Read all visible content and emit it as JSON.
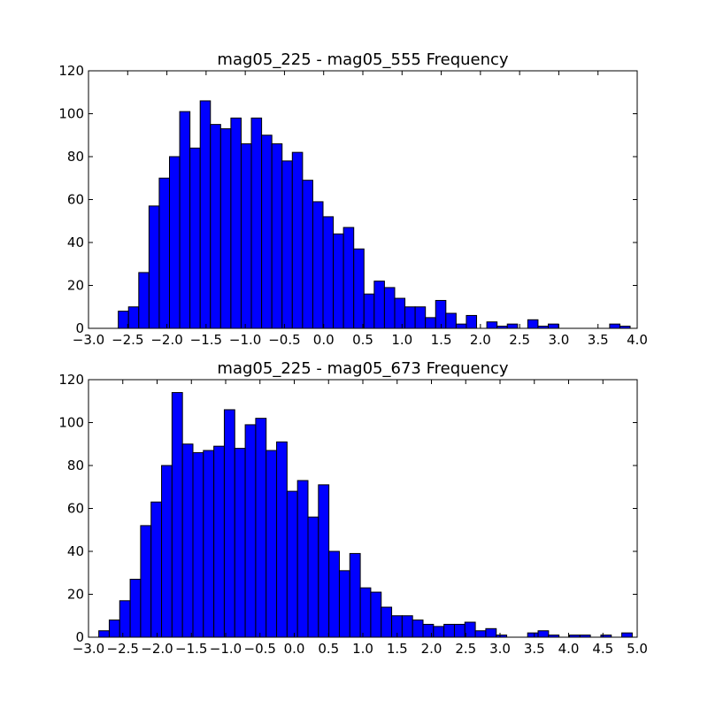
{
  "chart_data": [
    {
      "type": "bar",
      "title": "mag05_225 - mag05_555 Frequency",
      "xlabel": "",
      "ylabel": "",
      "xlim": [
        -3.0,
        4.0
      ],
      "ylim": [
        0,
        120
      ],
      "xticks": [
        "−3.0",
        "−2.5",
        "−2.0",
        "−1.5",
        "−1.0",
        "−0.5",
        "0.0",
        "0.5",
        "1.0",
        "1.5",
        "2.0",
        "2.5",
        "3.0",
        "3.5",
        "4.0"
      ],
      "yticks": [
        "0",
        "20",
        "40",
        "60",
        "80",
        "100",
        "120"
      ],
      "bin_start": -2.62,
      "bin_width": 0.1306,
      "values": [
        8,
        10,
        26,
        57,
        70,
        80,
        101,
        84,
        106,
        95,
        93,
        98,
        86,
        98,
        90,
        86,
        78,
        82,
        69,
        59,
        52,
        44,
        47,
        37,
        16,
        22,
        19,
        14,
        10,
        10,
        5,
        13,
        7,
        2,
        6,
        0,
        3,
        1,
        2,
        0,
        4,
        1,
        2,
        0,
        0,
        0,
        0,
        0,
        2,
        1
      ],
      "bar_color": "#0000ff",
      "grid": false
    },
    {
      "type": "bar",
      "title": "mag05_225 - mag05_673 Frequency",
      "xlabel": "",
      "ylabel": "",
      "xlim": [
        -3.0,
        5.0
      ],
      "ylim": [
        0,
        120
      ],
      "xticks": [
        "−3.0",
        "−2.5",
        "−2.0",
        "−1.5",
        "−1.0",
        "−0.5",
        "0.0",
        "0.5",
        "1.0",
        "1.5",
        "2.0",
        "2.5",
        "3.0",
        "3.5",
        "4.0",
        "4.5",
        "5.0"
      ],
      "yticks": [
        "0",
        "20",
        "40",
        "60",
        "80",
        "100",
        "120"
      ],
      "bin_start": -2.85,
      "bin_width": 0.1525,
      "values": [
        3,
        8,
        17,
        27,
        52,
        63,
        80,
        114,
        90,
        86,
        87,
        89,
        106,
        88,
        99,
        102,
        87,
        91,
        68,
        73,
        56,
        71,
        40,
        31,
        39,
        23,
        21,
        14,
        10,
        10,
        8,
        6,
        5,
        6,
        6,
        7,
        3,
        4,
        1,
        0,
        0,
        2,
        3,
        1,
        0,
        1,
        1,
        0,
        1,
        0,
        2
      ],
      "bar_color": "#0000ff",
      "grid": false
    }
  ]
}
